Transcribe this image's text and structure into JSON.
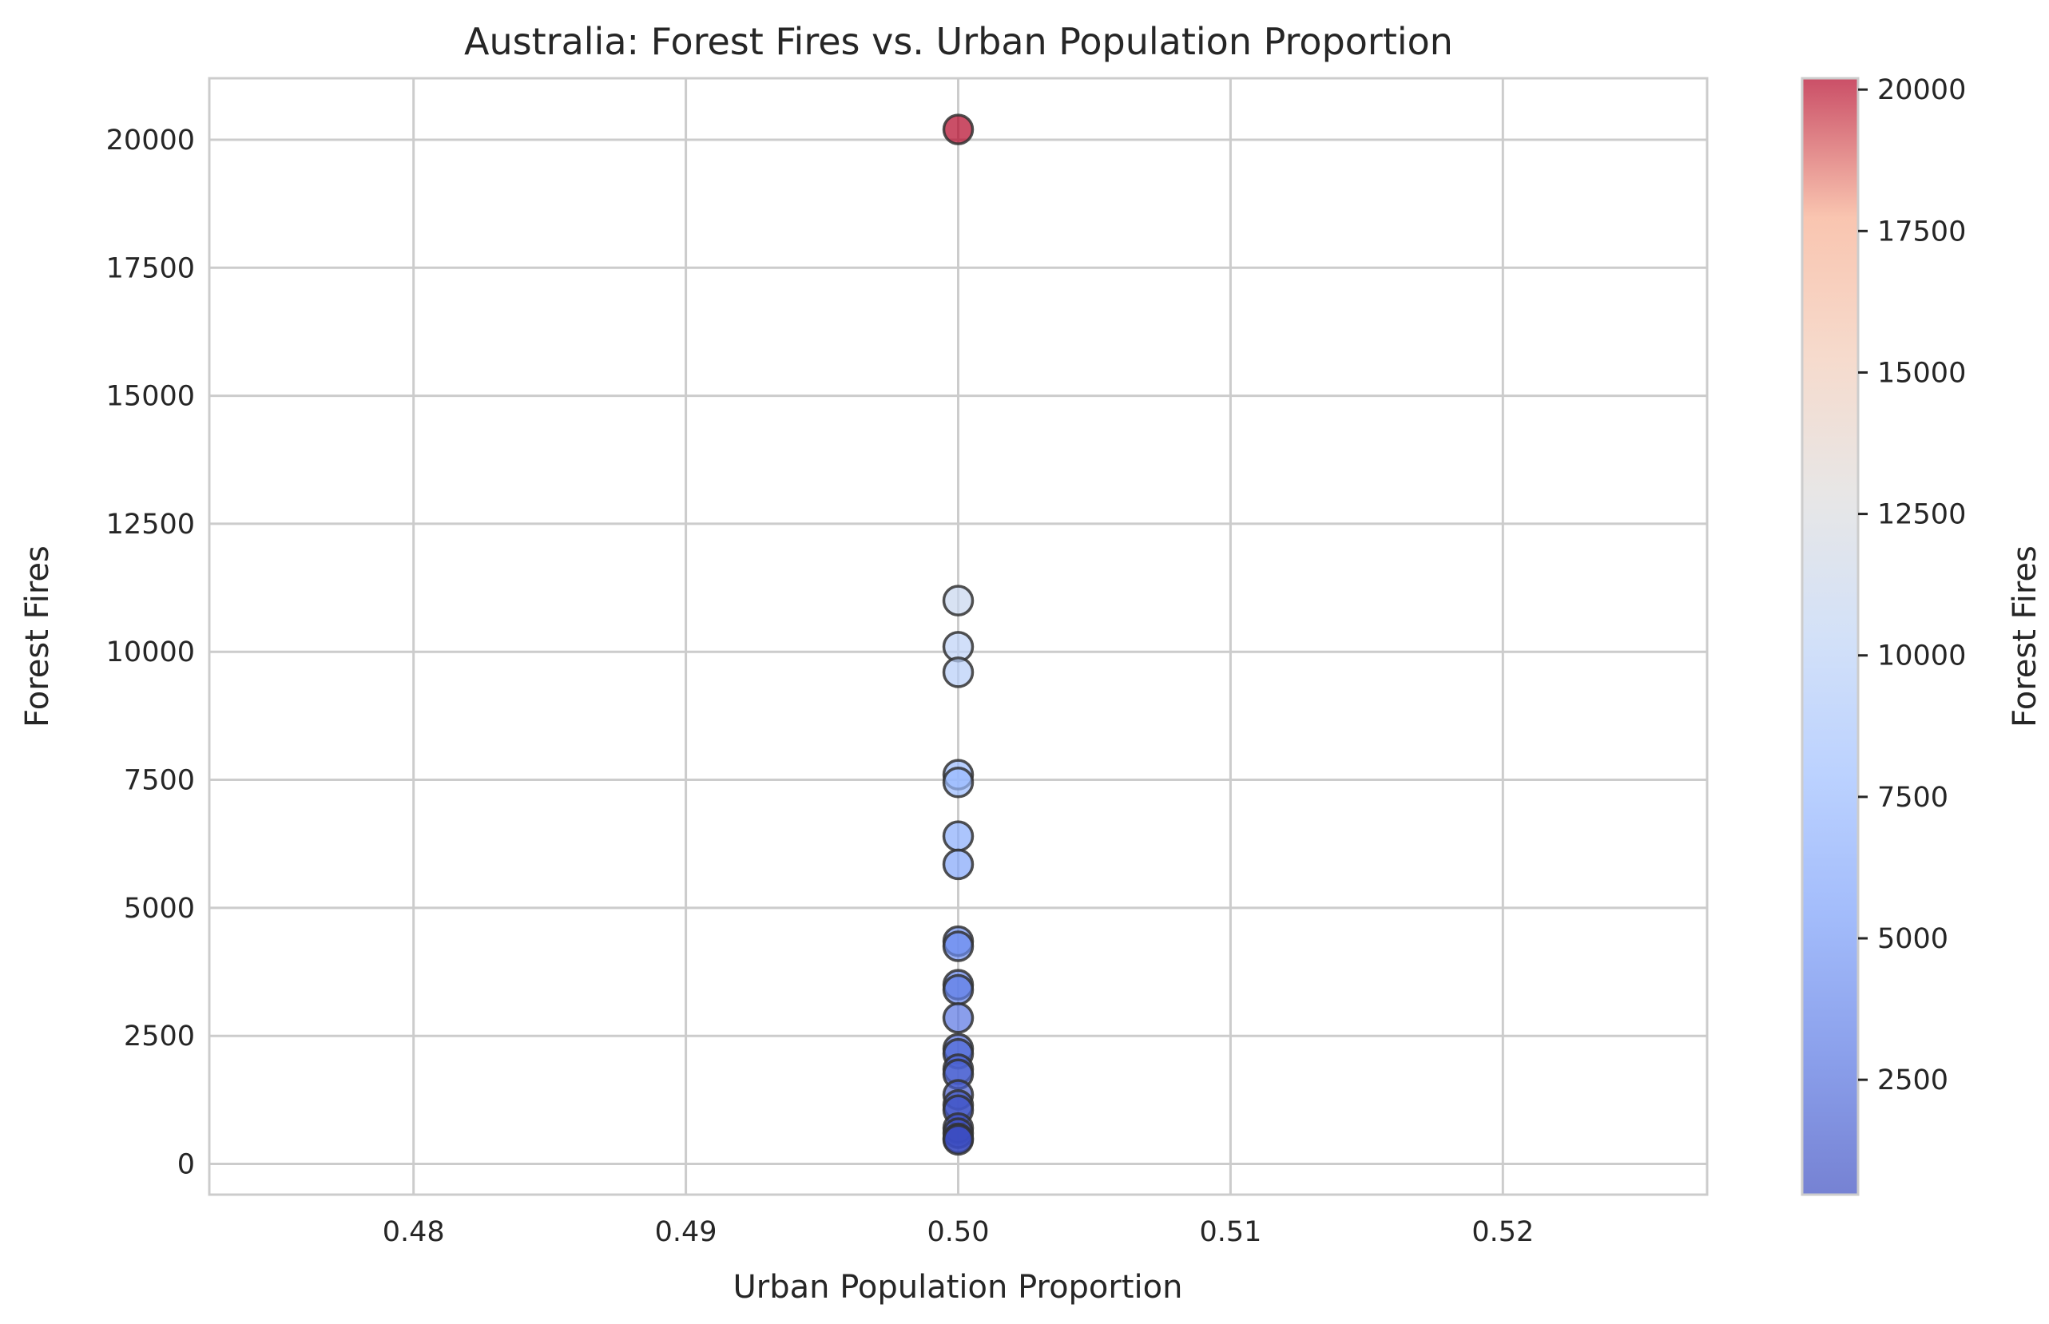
{
  "chart_data": {
    "type": "scatter",
    "title": "Australia: Forest Fires vs. Urban Population Proportion",
    "xlabel": "Urban Population Proportion",
    "ylabel": "Forest Fires",
    "xlim": [
      0.4725,
      0.5275
    ],
    "ylim": [
      -600,
      21200
    ],
    "x_ticks": [
      "0.48",
      "0.49",
      "0.50",
      "0.51",
      "0.52"
    ],
    "x_tick_values": [
      0.48,
      0.49,
      0.5,
      0.51,
      0.52
    ],
    "y_ticks": [
      "0",
      "2500",
      "5000",
      "7500",
      "10000",
      "12500",
      "15000",
      "17500",
      "20000"
    ],
    "y_tick_values": [
      0,
      2500,
      5000,
      7500,
      10000,
      12500,
      15000,
      17500,
      20000
    ],
    "grid": true,
    "colormap": "coolwarm",
    "marker_alpha": 0.7,
    "marker_edge_color": "#333333",
    "colorbar": {
      "label": "Forest Fires",
      "range": [
        470,
        20200
      ],
      "ticks": [
        "2500",
        "5000",
        "7500",
        "10000",
        "12500",
        "15000",
        "17500",
        "20000"
      ],
      "tick_values": [
        2500,
        5000,
        7500,
        10000,
        12500,
        15000,
        17500,
        20000
      ]
    },
    "points": [
      {
        "x": 0.5,
        "y": 20200
      },
      {
        "x": 0.5,
        "y": 11000
      },
      {
        "x": 0.5,
        "y": 10100
      },
      {
        "x": 0.5,
        "y": 9600
      },
      {
        "x": 0.5,
        "y": 7600
      },
      {
        "x": 0.5,
        "y": 7450
      },
      {
        "x": 0.5,
        "y": 6400
      },
      {
        "x": 0.5,
        "y": 5850
      },
      {
        "x": 0.5,
        "y": 4350
      },
      {
        "x": 0.5,
        "y": 4250
      },
      {
        "x": 0.5,
        "y": 3500
      },
      {
        "x": 0.5,
        "y": 3400
      },
      {
        "x": 0.5,
        "y": 2850
      },
      {
        "x": 0.5,
        "y": 2250
      },
      {
        "x": 0.5,
        "y": 2150
      },
      {
        "x": 0.5,
        "y": 1850
      },
      {
        "x": 0.5,
        "y": 1750
      },
      {
        "x": 0.5,
        "y": 1350
      },
      {
        "x": 0.5,
        "y": 1150
      },
      {
        "x": 0.5,
        "y": 1050
      },
      {
        "x": 0.5,
        "y": 700
      },
      {
        "x": 0.5,
        "y": 600
      },
      {
        "x": 0.5,
        "y": 500
      },
      {
        "x": 0.5,
        "y": 470
      }
    ]
  }
}
